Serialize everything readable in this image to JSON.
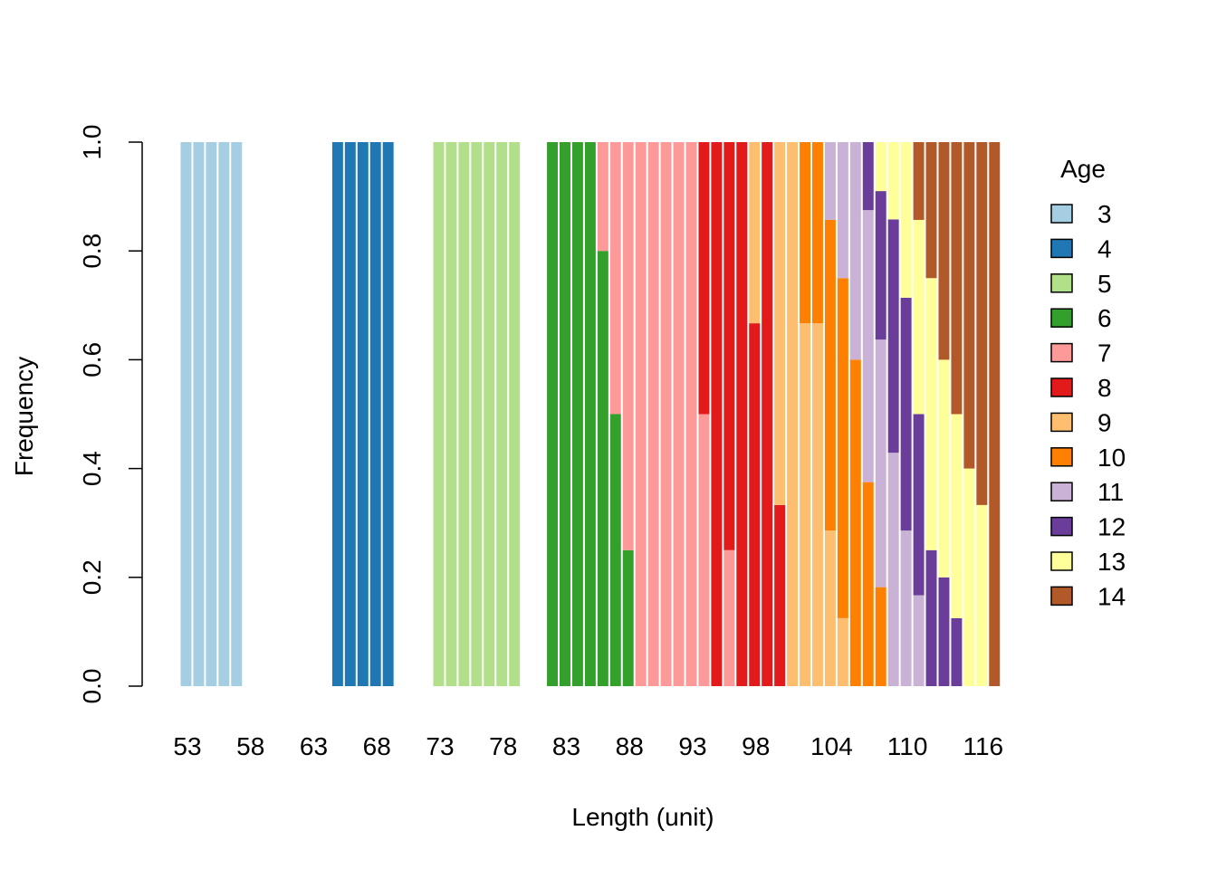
{
  "chart_data": {
    "type": "bar",
    "stacked": true,
    "xlabel": "Length (unit)",
    "ylabel": "Frequency",
    "ylim": [
      0,
      1
    ],
    "yticks": [
      "0.0",
      "0.2",
      "0.4",
      "0.6",
      "0.8",
      "1.0"
    ],
    "x_start": 53,
    "x_end": 117,
    "x_tick_labels": [
      "53",
      "58",
      "63",
      "68",
      "73",
      "78",
      "83",
      "88",
      "93",
      "98",
      "104",
      "110",
      "116"
    ],
    "legend": {
      "title": "Age",
      "position": "right",
      "entries": [
        "3",
        "4",
        "5",
        "6",
        "7",
        "8",
        "9",
        "10",
        "11",
        "12",
        "13",
        "14"
      ]
    },
    "colors": {
      "3": "#A6CEE3",
      "4": "#1F78B4",
      "5": "#B2DF8A",
      "6": "#33A02C",
      "7": "#FB9A99",
      "8": "#E31A1C",
      "9": "#FDBF6F",
      "10": "#FF7F00",
      "11": "#CAB2D6",
      "12": "#6A3D9A",
      "13": "#FFFF99",
      "14": "#B15928"
    },
    "bars": [
      {
        "length": 53,
        "segments": [
          {
            "age": "3",
            "value": 1
          }
        ]
      },
      {
        "length": 54,
        "segments": [
          {
            "age": "3",
            "value": 1
          }
        ]
      },
      {
        "length": 55,
        "segments": [
          {
            "age": "3",
            "value": 1
          }
        ]
      },
      {
        "length": 56,
        "segments": [
          {
            "age": "3",
            "value": 1
          }
        ]
      },
      {
        "length": 57,
        "segments": [
          {
            "age": "3",
            "value": 1
          }
        ]
      },
      {
        "length": 58,
        "segments": []
      },
      {
        "length": 59,
        "segments": []
      },
      {
        "length": 60,
        "segments": []
      },
      {
        "length": 61,
        "segments": []
      },
      {
        "length": 62,
        "segments": []
      },
      {
        "length": 63,
        "segments": []
      },
      {
        "length": 64,
        "segments": []
      },
      {
        "length": 65,
        "segments": [
          {
            "age": "4",
            "value": 1
          }
        ]
      },
      {
        "length": 66,
        "segments": [
          {
            "age": "4",
            "value": 1
          }
        ]
      },
      {
        "length": 67,
        "segments": [
          {
            "age": "4",
            "value": 1
          }
        ]
      },
      {
        "length": 68,
        "segments": [
          {
            "age": "4",
            "value": 1
          }
        ]
      },
      {
        "length": 69,
        "segments": [
          {
            "age": "4",
            "value": 1
          }
        ]
      },
      {
        "length": 70,
        "segments": []
      },
      {
        "length": 71,
        "segments": []
      },
      {
        "length": 72,
        "segments": []
      },
      {
        "length": 73,
        "segments": [
          {
            "age": "5",
            "value": 1
          }
        ]
      },
      {
        "length": 74,
        "segments": [
          {
            "age": "5",
            "value": 1
          }
        ]
      },
      {
        "length": 75,
        "segments": [
          {
            "age": "5",
            "value": 1
          }
        ]
      },
      {
        "length": 76,
        "segments": [
          {
            "age": "5",
            "value": 1
          }
        ]
      },
      {
        "length": 77,
        "segments": [
          {
            "age": "5",
            "value": 1
          }
        ]
      },
      {
        "length": 78,
        "segments": [
          {
            "age": "5",
            "value": 1
          }
        ]
      },
      {
        "length": 79,
        "segments": [
          {
            "age": "5",
            "value": 1
          }
        ]
      },
      {
        "length": 80,
        "segments": []
      },
      {
        "length": 81,
        "segments": []
      },
      {
        "length": 82,
        "segments": [
          {
            "age": "6",
            "value": 1
          }
        ]
      },
      {
        "length": 83,
        "segments": [
          {
            "age": "6",
            "value": 1
          }
        ]
      },
      {
        "length": 84,
        "segments": [
          {
            "age": "6",
            "value": 1
          }
        ]
      },
      {
        "length": 85,
        "segments": [
          {
            "age": "6",
            "value": 1
          }
        ]
      },
      {
        "length": 86,
        "segments": [
          {
            "age": "6",
            "value": 0.8
          },
          {
            "age": "7",
            "value": 0.2
          }
        ]
      },
      {
        "length": 87,
        "segments": [
          {
            "age": "6",
            "value": 0.5
          },
          {
            "age": "7",
            "value": 0.5
          }
        ]
      },
      {
        "length": 88,
        "segments": [
          {
            "age": "6",
            "value": 0.25
          },
          {
            "age": "7",
            "value": 0.75
          }
        ]
      },
      {
        "length": 89,
        "segments": [
          {
            "age": "7",
            "value": 1
          }
        ]
      },
      {
        "length": 90,
        "segments": [
          {
            "age": "7",
            "value": 1
          }
        ]
      },
      {
        "length": 91,
        "segments": [
          {
            "age": "7",
            "value": 1
          }
        ]
      },
      {
        "length": 92,
        "segments": [
          {
            "age": "7",
            "value": 1
          }
        ]
      },
      {
        "length": 93,
        "segments": [
          {
            "age": "7",
            "value": 1
          }
        ]
      },
      {
        "length": 94,
        "segments": [
          {
            "age": "7",
            "value": 0.5
          },
          {
            "age": "8",
            "value": 0.5
          }
        ]
      },
      {
        "length": 95,
        "segments": [
          {
            "age": "8",
            "value": 1
          }
        ]
      },
      {
        "length": 96,
        "segments": [
          {
            "age": "7",
            "value": 0.25
          },
          {
            "age": "8",
            "value": 0.75
          }
        ]
      },
      {
        "length": 97,
        "segments": [
          {
            "age": "8",
            "value": 1
          }
        ]
      },
      {
        "length": 98,
        "segments": [
          {
            "age": "8",
            "value": 0.667
          },
          {
            "age": "9",
            "value": 0.333
          }
        ]
      },
      {
        "length": 99,
        "segments": [
          {
            "age": "8",
            "value": 1
          }
        ]
      },
      {
        "length": 100,
        "segments": [
          {
            "age": "8",
            "value": 0.333
          },
          {
            "age": "9",
            "value": 0.667
          }
        ]
      },
      {
        "length": 101,
        "segments": [
          {
            "age": "9",
            "value": 1
          }
        ]
      },
      {
        "length": 102,
        "segments": [
          {
            "age": "9",
            "value": 0.667
          },
          {
            "age": "10",
            "value": 0.333
          }
        ]
      },
      {
        "length": 103,
        "segments": [
          {
            "age": "9",
            "value": 0.667
          },
          {
            "age": "10",
            "value": 0.333
          }
        ]
      },
      {
        "length": 104,
        "segments": [
          {
            "age": "9",
            "value": 0.286
          },
          {
            "age": "10",
            "value": 0.571
          },
          {
            "age": "11",
            "value": 0.143
          }
        ]
      },
      {
        "length": 105,
        "segments": [
          {
            "age": "9",
            "value": 0.125
          },
          {
            "age": "10",
            "value": 0.625
          },
          {
            "age": "11",
            "value": 0.25
          }
        ]
      },
      {
        "length": 106,
        "segments": [
          {
            "age": "10",
            "value": 0.6
          },
          {
            "age": "11",
            "value": 0.4
          }
        ]
      },
      {
        "length": 107,
        "segments": [
          {
            "age": "10",
            "value": 0.375
          },
          {
            "age": "11",
            "value": 0.5
          },
          {
            "age": "12",
            "value": 0.125
          }
        ]
      },
      {
        "length": 108,
        "segments": [
          {
            "age": "10",
            "value": 0.182
          },
          {
            "age": "11",
            "value": 0.455
          },
          {
            "age": "12",
            "value": 0.273
          },
          {
            "age": "13",
            "value": 0.09
          }
        ]
      },
      {
        "length": 109,
        "segments": [
          {
            "age": "11",
            "value": 0.429
          },
          {
            "age": "12",
            "value": 0.429
          },
          {
            "age": "13",
            "value": 0.142
          }
        ]
      },
      {
        "length": 110,
        "segments": [
          {
            "age": "11",
            "value": 0.286
          },
          {
            "age": "12",
            "value": 0.428
          },
          {
            "age": "13",
            "value": 0.286
          }
        ]
      },
      {
        "length": 111,
        "segments": [
          {
            "age": "11",
            "value": 0.167
          },
          {
            "age": "12",
            "value": 0.333
          },
          {
            "age": "13",
            "value": 0.357
          },
          {
            "age": "14",
            "value": 0.143
          }
        ]
      },
      {
        "length": 112,
        "segments": [
          {
            "age": "12",
            "value": 0.25
          },
          {
            "age": "13",
            "value": 0.5
          },
          {
            "age": "14",
            "value": 0.25
          }
        ]
      },
      {
        "length": 113,
        "segments": [
          {
            "age": "12",
            "value": 0.2
          },
          {
            "age": "13",
            "value": 0.4
          },
          {
            "age": "14",
            "value": 0.4
          }
        ]
      },
      {
        "length": 114,
        "segments": [
          {
            "age": "12",
            "value": 0.125
          },
          {
            "age": "13",
            "value": 0.375
          },
          {
            "age": "14",
            "value": 0.5
          }
        ]
      },
      {
        "length": 115,
        "segments": [
          {
            "age": "13",
            "value": 0.4
          },
          {
            "age": "14",
            "value": 0.6
          }
        ]
      },
      {
        "length": 116,
        "segments": [
          {
            "age": "13",
            "value": 0.333
          },
          {
            "age": "14",
            "value": 0.667
          }
        ]
      },
      {
        "length": 117,
        "segments": [
          {
            "age": "14",
            "value": 1
          }
        ]
      }
    ]
  }
}
